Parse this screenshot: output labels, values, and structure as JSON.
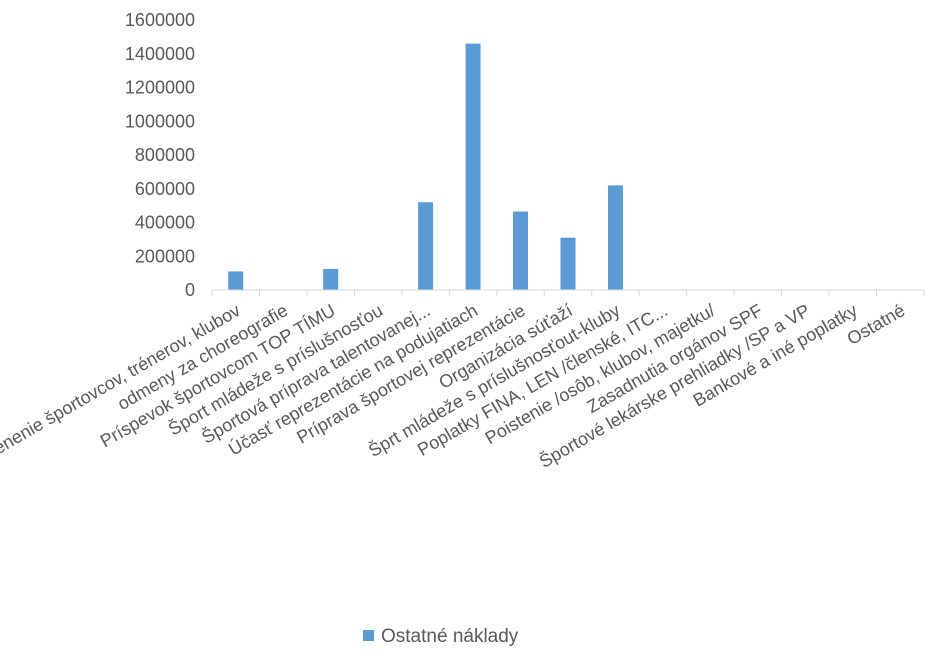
{
  "chart_data": {
    "type": "bar",
    "categories": [
      "Ocenenie športovcov, trénerov, klubov",
      "odmeny za choreografie",
      "Príspevok športovcom TOP TÍMU",
      "Šport mládeže s príslušnosťou",
      "Športová príprava talentovanej...",
      "Účasť reprezentácie na podujatiach",
      "Príprava športovej reprezentácie",
      "Organizácia súťaží",
      "Šprt mládeže s príslušnosťout-kluby",
      "Poplatky FINA, LEN /členské, ITC...",
      "Poistenie /osôb, klubov, majetku/",
      "Zasadnutia orgánov SPF",
      "Športové lekárske prehliadky /SP a VP",
      "Bankové a iné poplatky",
      "Ostatné"
    ],
    "series": [
      {
        "name": "Ostatné náklady",
        "values": [
          110000,
          0,
          125000,
          0,
          520000,
          1460000,
          465000,
          310000,
          620000,
          0,
          0,
          0,
          0,
          0,
          0
        ]
      }
    ],
    "ylim": [
      0,
      1600000
    ],
    "yticks": [
      "0",
      "200000",
      "400000",
      "600000",
      "800000",
      "1000000",
      "1200000",
      "1400000",
      "1600000"
    ],
    "grid": false,
    "legend": "bottom",
    "bar_color": "#5b9bd5",
    "axis_color": "#d9d9d9",
    "text_color": "#595959"
  }
}
